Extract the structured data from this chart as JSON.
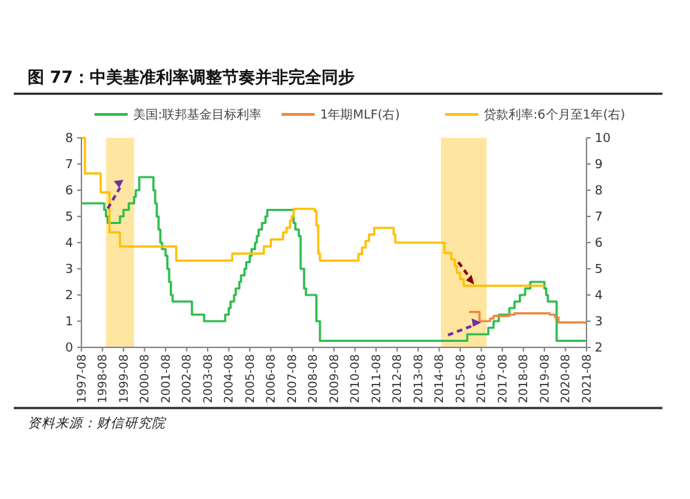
{
  "chart_data": {
    "type": "step",
    "title": "图 77：中美基准利率调整节奏并非完全同步",
    "annotations": [
      "资料来源：财信研究院"
    ],
    "xlim": [
      "1997-08",
      "2021-08"
    ],
    "xticks": [
      "1997-08",
      "1998-08",
      "1999-08",
      "2000-08",
      "2001-08",
      "2002-08",
      "2003-08",
      "2004-08",
      "2005-08",
      "2006-08",
      "2007-08",
      "2008-08",
      "2009-08",
      "2010-08",
      "2011-08",
      "2012-08",
      "2013-08",
      "2014-08",
      "2015-08",
      "2016-08",
      "2017-08",
      "2018-08",
      "2019-08",
      "2020-08",
      "2021-08"
    ],
    "ylim": [
      0,
      8
    ],
    "yticks": [
      0,
      1,
      2,
      3,
      4,
      5,
      6,
      7,
      8
    ],
    "y2lim": [
      2,
      10
    ],
    "y2ticks": [
      2,
      3,
      4,
      5,
      6,
      7,
      8,
      9,
      10
    ],
    "legend": "top",
    "grid": false,
    "line_style": "solid",
    "marker": "none",
    "bands": [
      {
        "axis": "x",
        "from": "1998-10",
        "to": "2000-02",
        "color": "#ffe6a0"
      },
      {
        "axis": "x",
        "from": "2014-09",
        "to": "2016-11",
        "color": "#ffe6a0"
      }
    ],
    "series": [
      {
        "name": "美国:联邦基金目标利率",
        "color": "#2ebd4e",
        "x": [
          "1997-08",
          "1998-09",
          "1998-10",
          "1998-11",
          "1999-06",
          "1999-08",
          "1999-11",
          "2000-02",
          "2000-03",
          "2000-05",
          "2001-01",
          "2001-02",
          "2001-03",
          "2001-04",
          "2001-05",
          "2001-06",
          "2001-08",
          "2001-09",
          "2001-10",
          "2001-11",
          "2001-12",
          "2002-11",
          "2003-06",
          "2004-06",
          "2004-08",
          "2004-09",
          "2004-11",
          "2004-12",
          "2005-02",
          "2005-03",
          "2005-05",
          "2005-06",
          "2005-08",
          "2005-09",
          "2005-11",
          "2005-12",
          "2006-01",
          "2006-03",
          "2006-05",
          "2006-06",
          "2007-09",
          "2007-10",
          "2007-12",
          "2008-01",
          "2008-03",
          "2008-04",
          "2008-10",
          "2008-12",
          "2015-12",
          "2016-12",
          "2017-03",
          "2017-06",
          "2017-12",
          "2018-03",
          "2018-06",
          "2018-09",
          "2018-12",
          "2019-08",
          "2019-09",
          "2019-10",
          "2020-03",
          "2021-08"
        ],
        "values": [
          5.5,
          5.25,
          5.0,
          4.75,
          5.0,
          5.25,
          5.5,
          5.75,
          6.0,
          6.5,
          6.0,
          5.5,
          5.0,
          4.5,
          4.0,
          3.75,
          3.5,
          3.0,
          2.5,
          2.0,
          1.75,
          1.25,
          1.0,
          1.25,
          1.5,
          1.75,
          2.0,
          2.25,
          2.5,
          2.75,
          3.0,
          3.25,
          3.5,
          3.75,
          4.0,
          4.25,
          4.5,
          4.75,
          5.0,
          5.25,
          4.75,
          4.5,
          4.25,
          3.0,
          2.25,
          2.0,
          1.0,
          0.25,
          0.5,
          0.75,
          1.0,
          1.25,
          1.5,
          1.75,
          2.0,
          2.25,
          2.5,
          2.25,
          2.0,
          1.75,
          0.25,
          0.25
        ]
      },
      {
        "name": "1年期MLF(右)",
        "color": "#f0883c",
        "axis": "y2",
        "x": [
          "2016-01",
          "2016-07",
          "2017-01",
          "2017-03",
          "2017-12",
          "2018-03",
          "2019-11",
          "2020-02",
          "2020-04",
          "2021-08"
        ],
        "values": [
          3.35,
          3.0,
          3.1,
          3.2,
          3.25,
          3.3,
          3.25,
          3.15,
          2.95,
          2.95
        ]
      },
      {
        "name": "贷款利率:6个月至1年(右)",
        "color": "#ffc000",
        "axis": "y2",
        "x": [
          "1997-08",
          "1997-10",
          "1998-07",
          "1998-12",
          "1999-06",
          "2002-02",
          "2004-10",
          "2006-04",
          "2006-08",
          "2007-03",
          "2007-05",
          "2007-07",
          "2007-08",
          "2007-09",
          "2008-09",
          "2008-10",
          "2008-11",
          "2008-12",
          "2010-10",
          "2010-12",
          "2011-02",
          "2011-04",
          "2011-07",
          "2012-06",
          "2012-07",
          "2014-11",
          "2015-03",
          "2015-05",
          "2015-06",
          "2015-08",
          "2015-10",
          "2019-08"
        ],
        "values": [
          10,
          8.64,
          7.92,
          6.39,
          5.85,
          5.31,
          5.58,
          5.85,
          6.12,
          6.39,
          6.57,
          6.84,
          7.02,
          7.29,
          7.2,
          6.66,
          5.58,
          5.31,
          5.56,
          5.81,
          6.06,
          6.31,
          6.56,
          6.31,
          6.0,
          5.6,
          5.35,
          5.1,
          4.85,
          4.6,
          4.35,
          4.35
        ]
      }
    ]
  }
}
